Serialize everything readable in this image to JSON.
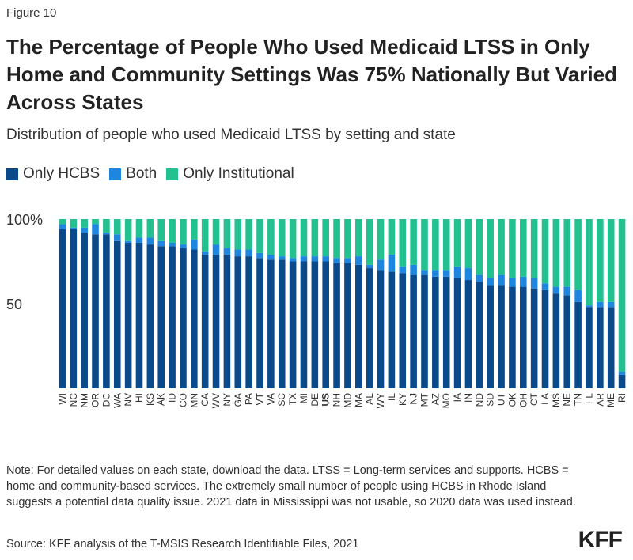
{
  "figure_label": "Figure 10",
  "title": "The Percentage of People Who Used Medicaid LTSS in Only Home and Community Settings Was 75% Nationally But Varied Across States",
  "subtitle": "Distribution of people who used Medicaid LTSS by setting and state",
  "legend": [
    {
      "label": "Only HCBS",
      "color": "#0b4a8a"
    },
    {
      "label": "Both",
      "color": "#1f86e0"
    },
    {
      "label": "Only Institutional",
      "color": "#23c18f"
    }
  ],
  "note": "Note: For detailed values on each state, download the data. LTSS = Long-term services and supports. HCBS = home and community-based services. The extremely small number of people using HCBS in Rhode Island suggests a potential data quality issue. 2021 data in Mississippi was not usable, so 2020 data was used instead.",
  "source": "Source: KFF analysis of the T-MSIS Research Identifiable Files, 2021",
  "logo": "KFF",
  "chart_data": {
    "type": "bar",
    "stacked": true,
    "title": "",
    "xlabel": "",
    "ylabel": "",
    "ylim": [
      0,
      100
    ],
    "yticks": [
      50,
      100
    ],
    "ytick_labels": [
      "50",
      "100%"
    ],
    "bold_categories": [
      "US"
    ],
    "categories": [
      "WI",
      "NC",
      "NM",
      "OR",
      "DC",
      "WA",
      "NV",
      "HI",
      "KS",
      "AK",
      "ID",
      "CO",
      "MN",
      "CA",
      "WV",
      "NY",
      "GA",
      "PA",
      "VT",
      "VA",
      "SC",
      "TX",
      "MI",
      "DE",
      "US",
      "NH",
      "MD",
      "MA",
      "AL",
      "WY",
      "IL",
      "KY",
      "NJ",
      "MT",
      "AZ",
      "MO",
      "IA",
      "IN",
      "ND",
      "SD",
      "UT",
      "OK",
      "OH",
      "CT",
      "LA",
      "MS",
      "NE",
      "TN",
      "FL",
      "AR",
      "ME",
      "RI"
    ],
    "series": [
      {
        "name": "Only HCBS",
        "color": "#0b4a8a",
        "values": [
          94,
          94,
          92,
          91,
          91,
          87,
          86,
          86,
          85,
          84,
          84,
          83,
          82,
          79,
          79,
          79,
          78,
          78,
          77,
          76,
          76,
          75,
          75,
          75,
          75,
          74,
          74,
          73,
          71,
          70,
          69,
          68,
          67,
          67,
          66,
          66,
          65,
          64,
          63,
          61,
          61,
          60,
          60,
          59,
          58,
          56,
          55,
          51,
          48,
          48,
          48,
          8
        ]
      },
      {
        "name": "Both",
        "color": "#1f86e0",
        "values": [
          3,
          1,
          3,
          6,
          1,
          4,
          1,
          3,
          4,
          3,
          2,
          2,
          6,
          2,
          6,
          4,
          4,
          4,
          3,
          3,
          2,
          2,
          3,
          3,
          3,
          3,
          3,
          5,
          2,
          6,
          10,
          4,
          6,
          3,
          4,
          4,
          7,
          7,
          4,
          4,
          6,
          5,
          6,
          6,
          4,
          4,
          5,
          7,
          1,
          3,
          3,
          2
        ]
      },
      {
        "name": "Only Institutional",
        "color": "#23c18f",
        "values": [
          3,
          5,
          5,
          3,
          8,
          9,
          13,
          11,
          11,
          13,
          14,
          15,
          12,
          19,
          15,
          17,
          18,
          18,
          20,
          21,
          22,
          23,
          22,
          22,
          22,
          23,
          23,
          22,
          27,
          24,
          21,
          28,
          27,
          30,
          30,
          30,
          28,
          29,
          33,
          35,
          33,
          35,
          34,
          35,
          38,
          40,
          40,
          42,
          51,
          49,
          49,
          90
        ]
      }
    ]
  }
}
